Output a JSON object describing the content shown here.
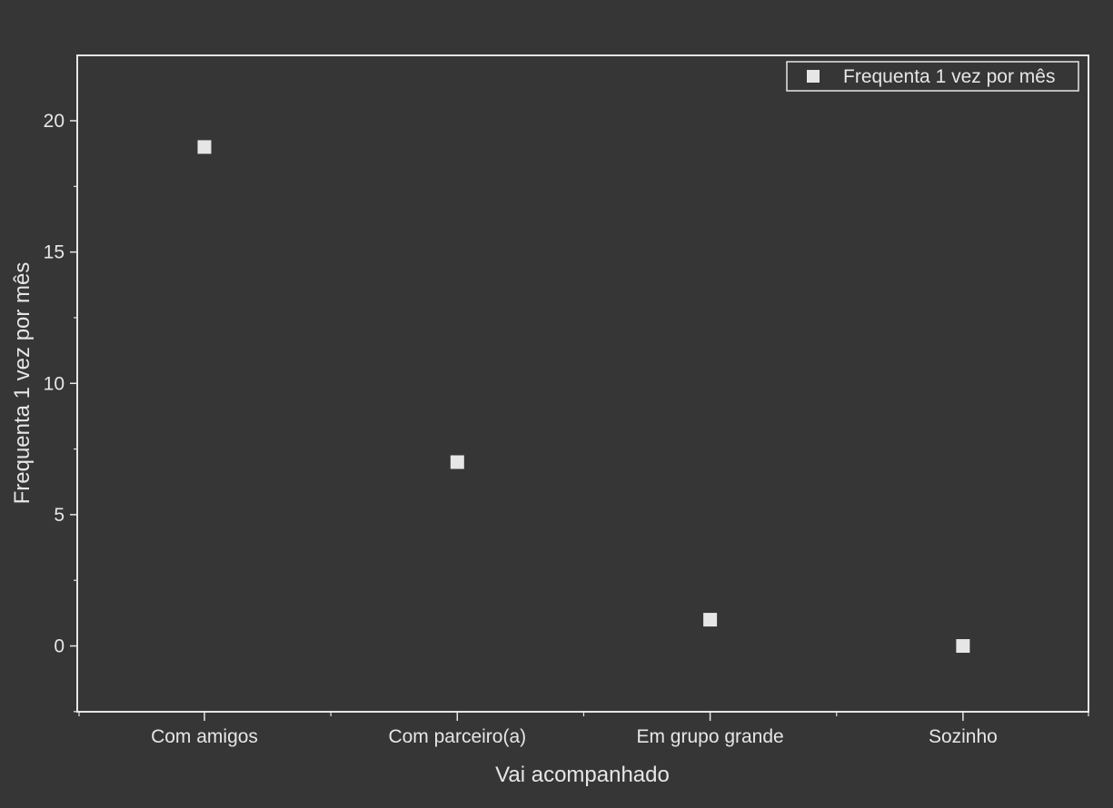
{
  "chart_data": {
    "type": "scatter",
    "categories": [
      "Com amigos",
      "Com parceiro(a)",
      "Em grupo grande",
      "Sozinho"
    ],
    "series": [
      {
        "name": "Frequenta 1 vez por mês",
        "values": [
          19,
          7,
          1,
          0
        ],
        "color": "#e6e6e6",
        "marker": "square"
      }
    ],
    "xlabel": "Vai acompanhado",
    "ylabel": "Frequenta 1 vez por mês",
    "ylim": [
      -2.5,
      22.5
    ],
    "yticks": [
      0,
      5,
      10,
      15,
      20
    ],
    "grid": false,
    "legend_position": "top-right",
    "colors": {
      "background": "#363636",
      "axis": "#e6e6e6",
      "text": "#e6e6e6"
    }
  }
}
